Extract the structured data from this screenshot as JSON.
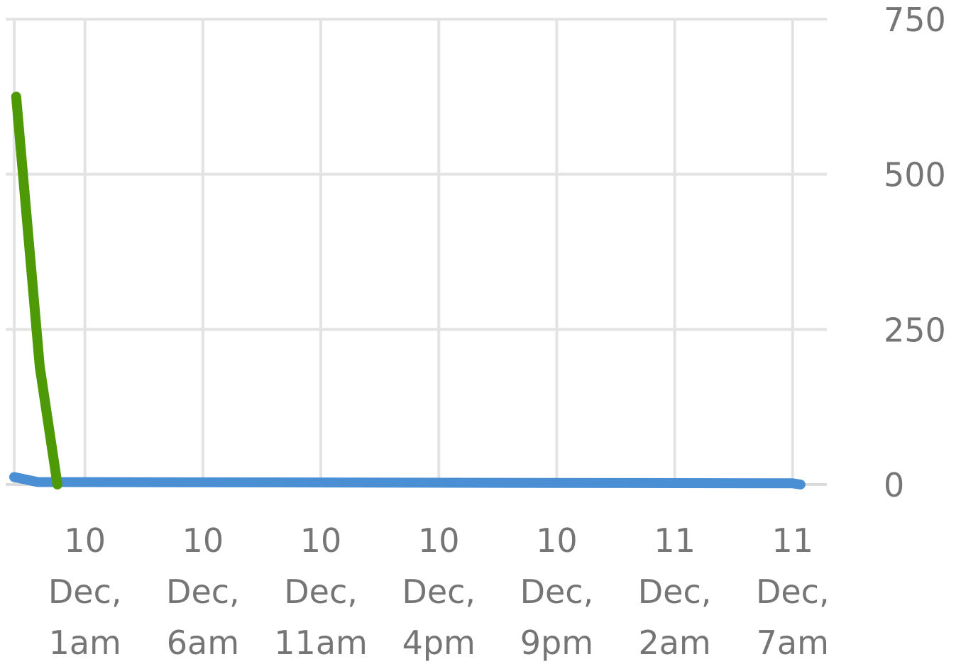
{
  "chart_data": {
    "type": "line",
    "title": "",
    "xlabel": "",
    "ylabel": "",
    "ylim": [
      0,
      750
    ],
    "y_ticks": [
      "750",
      "500",
      "250",
      "0"
    ],
    "y_axis_side": "right",
    "x_axis": "time",
    "xlim": [
      "2020-12-09T22:00",
      "2020-12-11T08:00"
    ],
    "x_ticks": [
      {
        "lines": [
          "10",
          "Dec,",
          "1am"
        ],
        "at": "2020-12-10T01:00"
      },
      {
        "lines": [
          "10",
          "Dec,",
          "6am"
        ],
        "at": "2020-12-10T06:00"
      },
      {
        "lines": [
          "10",
          "Dec,",
          "11am"
        ],
        "at": "2020-12-10T11:00"
      },
      {
        "lines": [
          "10",
          "Dec,",
          "4pm"
        ],
        "at": "2020-12-10T16:00"
      },
      {
        "lines": [
          "10",
          "Dec,",
          "9pm"
        ],
        "at": "2020-12-10T21:00"
      },
      {
        "lines": [
          "11",
          "Dec,",
          "2am"
        ],
        "at": "2020-12-11T02:00"
      },
      {
        "lines": [
          "11",
          "Dec,",
          "7am"
        ],
        "at": "2020-12-11T07:00"
      }
    ],
    "grid": true,
    "legend": "none",
    "series": [
      {
        "color": "#4e9a06",
        "points": [
          {
            "x": "2020-12-09T22:05",
            "y": 625
          },
          {
            "x": "2020-12-09T23:05",
            "y": 190
          },
          {
            "x": "2020-12-09T23:50",
            "y": 0
          }
        ]
      },
      {
        "color": "#4a8fd4",
        "points": [
          {
            "x": "2020-12-09T22:00",
            "y": 12
          },
          {
            "x": "2020-12-09T23:00",
            "y": 4
          },
          {
            "x": "2020-12-11T07:00",
            "y": 2
          },
          {
            "x": "2020-12-11T07:20",
            "y": 0
          }
        ]
      }
    ]
  }
}
